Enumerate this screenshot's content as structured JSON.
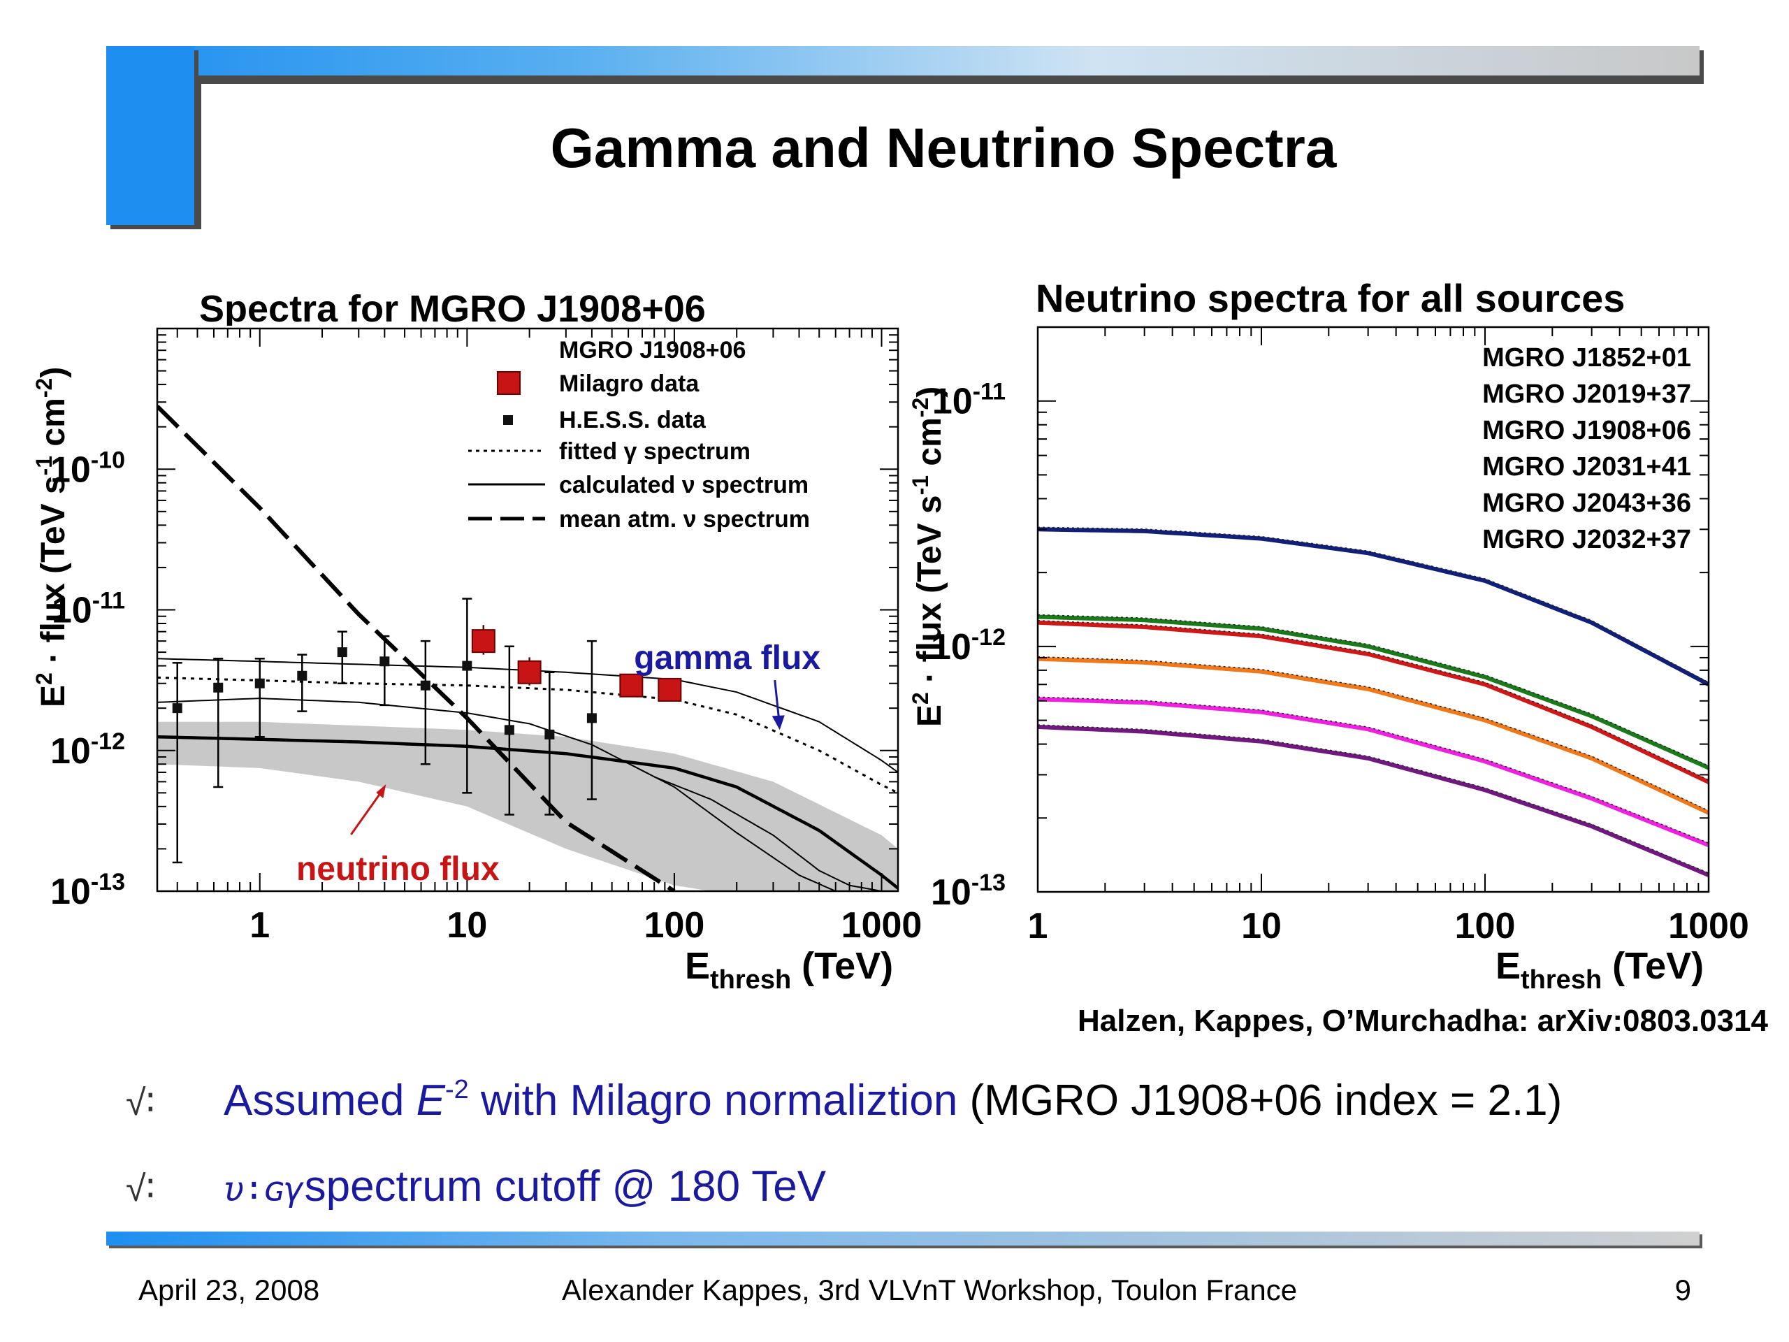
{
  "slide": {
    "title": "Gamma and Neutrino Spectra",
    "citation": "Halzen, Kappes, O’Murchadha: arXiv:0803.0314",
    "bullets": [
      {
        "mark": "√∶",
        "parts": [
          {
            "text": "Assumed ",
            "style": "blue"
          },
          {
            "text": "E",
            "style": "blue-italic"
          },
          {
            "text": "-2",
            "style": "blue-sup"
          },
          {
            "text": " with Milagro normaliztion",
            "style": "blue"
          },
          {
            "text": " (MGRO J1908+06 index = 2.1)",
            "style": "black"
          }
        ]
      },
      {
        "mark": "√∶",
        "parts": [
          {
            "text": "υ∶ɢγ",
            "style": "blue-glyph"
          },
          {
            "text": "spectrum cutoff @ 180 TeV",
            "style": "blue"
          }
        ]
      }
    ],
    "footer": {
      "date": "April 23, 2008",
      "center": "Alexander Kappes, 3rd VLVnT Workshop, Toulon France",
      "page": "9"
    }
  },
  "chart_data": [
    {
      "type": "line",
      "title": "Spectra for MGRO J1908+06",
      "xlabel": "E_thresh (TeV)",
      "ylabel": "E² · flux (TeV s⁻¹ cm⁻²)",
      "xscale": "log",
      "yscale": "log",
      "xlim": [
        0.32,
        1200
      ],
      "ylim": [
        1e-13,
        1e-09
      ],
      "xticks": [
        {
          "v": 1,
          "label": "1"
        },
        {
          "v": 10,
          "label": "10"
        },
        {
          "v": 100,
          "label": "100"
        },
        {
          "v": 1000,
          "label": "1000"
        }
      ],
      "yticks": [
        {
          "v": 1e-13,
          "label": "10",
          "exp": "-13"
        },
        {
          "v": 1e-12,
          "label": "10",
          "exp": "-12"
        },
        {
          "v": 1e-11,
          "label": "10",
          "exp": "-11"
        },
        {
          "v": 1e-10,
          "label": "10",
          "exp": "-10"
        }
      ],
      "legend": {
        "title": "MGRO J1908+06",
        "position": "top-right",
        "items": [
          {
            "label": "Milagro data",
            "symbol": "red-square"
          },
          {
            "label": "H.E.S.S. data",
            "symbol": "black-square"
          },
          {
            "label": "fitted γ spectrum",
            "symbol": "dotted"
          },
          {
            "label": "calculated ν spectrum",
            "symbol": "solid"
          },
          {
            "label": "mean atm. ν spectrum",
            "symbol": "dashed"
          }
        ]
      },
      "annotations": [
        {
          "text": "gamma flux",
          "color": "#1a1aa0",
          "x": 180,
          "y": 3.8e-12,
          "arrow_to": [
            320,
            1.4e-12
          ]
        },
        {
          "text": "neutrino flux",
          "color": "#c81414",
          "x": 1.5,
          "y": 1.2e-13,
          "arrow_to": [
            4,
            5.5e-13
          ]
        }
      ],
      "milagro": [
        {
          "x": 12,
          "y": 6e-12,
          "yerr": [
            4.8e-12,
            7.8e-12
          ]
        },
        {
          "x": 20,
          "y": 3.6e-12,
          "yerr": [
            2.9e-12,
            4.6e-12
          ]
        },
        {
          "x": 62,
          "y": 2.9e-12,
          "yerr": [
            2.5e-12,
            3.4e-12
          ]
        },
        {
          "x": 95,
          "y": 2.7e-12,
          "yerr": [
            2.3e-12,
            3.1e-12
          ]
        }
      ],
      "hess": [
        {
          "x": 0.4,
          "y": 2e-12,
          "lo": 1.6e-13,
          "hi": 4.2e-12
        },
        {
          "x": 0.63,
          "y": 2.8e-12,
          "lo": 5.5e-13,
          "hi": 4.5e-12
        },
        {
          "x": 1.0,
          "y": 3e-12,
          "lo": 1.25e-12,
          "hi": 4.5e-12
        },
        {
          "x": 1.6,
          "y": 3.4e-12,
          "lo": 1.9e-12,
          "hi": 4.8e-12
        },
        {
          "x": 2.5,
          "y": 5e-12,
          "lo": 3e-12,
          "hi": 7e-12
        },
        {
          "x": 4.0,
          "y": 4.3e-12,
          "lo": 2.1e-12,
          "hi": 6.5e-12
        },
        {
          "x": 6.3,
          "y": 2.9e-12,
          "lo": 8e-13,
          "hi": 6e-12
        },
        {
          "x": 10.0,
          "y": 4e-12,
          "lo": 5e-13,
          "hi": 1.2e-11
        },
        {
          "x": 16.0,
          "y": 1.4e-12,
          "lo": 3.5e-13,
          "hi": 5.5e-12
        },
        {
          "x": 25.0,
          "y": 1.3e-12,
          "lo": 3.5e-13,
          "hi": 3.6e-12
        },
        {
          "x": 40.0,
          "y": 1.7e-12,
          "lo": 4.5e-13,
          "hi": 6e-12
        }
      ],
      "curves": {
        "fitted_gamma": {
          "style": "dotted",
          "x": [
            0.32,
            1,
            3,
            10,
            30,
            100,
            200,
            500,
            1000,
            1200
          ],
          "y": [
            3.3e-12,
            3.15e-12,
            3e-12,
            2.9e-12,
            2.7e-12,
            2.3e-12,
            1.8e-12,
            1e-12,
            5.7e-13,
            5e-13
          ]
        },
        "upper_gamma": {
          "style": "solid-thin",
          "x": [
            0.32,
            1,
            3,
            10,
            30,
            100,
            200,
            500,
            1000,
            1200
          ],
          "y": [
            4.5e-12,
            4.3e-12,
            4.1e-12,
            3.9e-12,
            3.6e-12,
            3.2e-12,
            2.6e-12,
            1.6e-12,
            8.5e-13,
            7e-13
          ]
        },
        "calc_nu_thin": {
          "style": "solid-thin",
          "x": [
            0.32,
            1,
            3,
            10,
            20,
            40,
            100,
            200,
            400,
            600
          ],
          "y": [
            2.2e-12,
            2.35e-12,
            2.2e-12,
            1.85e-12,
            1.55e-12,
            1.1e-12,
            5.5e-13,
            2.6e-13,
            1.3e-13,
            1e-13
          ]
        },
        "calc_nu_thick": {
          "style": "solid-thick",
          "x": [
            0.32,
            1,
            3,
            10,
            30,
            100,
            200,
            500,
            1000,
            1200
          ],
          "y": [
            1.25e-12,
            1.2e-12,
            1.15e-12,
            1.07e-12,
            9.5e-13,
            7.5e-13,
            5.5e-13,
            2.7e-13,
            1.3e-13,
            1.05e-13
          ]
        },
        "thin_cutoff": {
          "style": "solid-thin",
          "x": [
            80,
            150,
            300,
            500,
            700,
            1000
          ],
          "y": [
            6.5e-13,
            4.5e-13,
            2.5e-13,
            1.4e-13,
            1.1e-13,
            1e-13
          ]
        },
        "atm_nu": {
          "style": "dashed",
          "x": [
            0.32,
            1,
            3,
            10,
            30,
            100
          ],
          "y": [
            2.8e-10,
            5.3e-11,
            9.3e-12,
            1.7e-12,
            3.1e-13,
            1e-13
          ]
        },
        "band_upper": {
          "x": [
            0.32,
            1,
            3,
            10,
            30,
            100,
            300,
            1000,
            1200
          ],
          "y": [
            1.6e-12,
            1.6e-12,
            1.5e-12,
            1.4e-12,
            1.25e-12,
            9.5e-13,
            6e-13,
            2.5e-13,
            2e-13
          ]
        },
        "band_lower": {
          "x": [
            0.32,
            1,
            3,
            10,
            30,
            100,
            150
          ],
          "y": [
            8e-13,
            7.5e-13,
            6e-13,
            4e-13,
            2e-13,
            1.1e-13,
            1e-13
          ]
        }
      }
    },
    {
      "type": "line",
      "title": "Neutrino spectra for all sources",
      "xlabel": "E_thresh (TeV)",
      "ylabel": "E² · flux (TeV s⁻¹ cm⁻²)",
      "xscale": "log",
      "yscale": "log",
      "xlim": [
        1,
        1000
      ],
      "ylim": [
        1e-13,
        2e-11
      ],
      "xticks": [
        {
          "v": 1,
          "label": "1"
        },
        {
          "v": 10,
          "label": "10"
        },
        {
          "v": 100,
          "label": "100"
        },
        {
          "v": 1000,
          "label": "1000"
        }
      ],
      "yticks": [
        {
          "v": 1e-13,
          "label": "10",
          "exp": "-13"
        },
        {
          "v": 1e-12,
          "label": "10",
          "exp": "-12"
        },
        {
          "v": 1e-11,
          "label": "10",
          "exp": "-11"
        }
      ],
      "legend": {
        "position": "top-right",
        "items": [
          "MGRO J1852+01",
          "MGRO J2019+37",
          "MGRO J1908+06",
          "MGRO J2031+41",
          "MGRO J2043+36",
          "MGRO J2032+37"
        ]
      },
      "series": [
        {
          "color": "#10207a",
          "x": [
            1,
            3,
            10,
            30,
            100,
            300,
            1000
          ],
          "y": [
            3e-12,
            2.95e-12,
            2.75e-12,
            2.4e-12,
            1.85e-12,
            1.25e-12,
            7e-13
          ]
        },
        {
          "color": "#1a7a1a",
          "x": [
            1,
            3,
            10,
            30,
            100,
            300,
            1000
          ],
          "y": [
            1.32e-12,
            1.28e-12,
            1.18e-12,
            1e-12,
            7.5e-13,
            5.2e-13,
            3.2e-13
          ]
        },
        {
          "color": "#d01818",
          "x": [
            1,
            3,
            10,
            30,
            100,
            300,
            1000
          ],
          "y": [
            1.25e-12,
            1.2e-12,
            1.1e-12,
            9.3e-13,
            7e-13,
            4.7e-13,
            2.8e-13
          ]
        },
        {
          "color": "#f07818",
          "x": [
            1,
            3,
            10,
            30,
            100,
            300,
            1000
          ],
          "y": [
            8.9e-13,
            8.6e-13,
            7.9e-13,
            6.7e-13,
            5e-13,
            3.5e-13,
            2.1e-13
          ]
        },
        {
          "color": "#f020e0",
          "x": [
            1,
            3,
            10,
            30,
            100,
            300,
            1000
          ],
          "y": [
            6.1e-13,
            5.9e-13,
            5.4e-13,
            4.6e-13,
            3.4e-13,
            2.4e-13,
            1.55e-13
          ]
        },
        {
          "color": "#701880",
          "x": [
            1,
            3,
            10,
            30,
            100,
            300,
            1000
          ],
          "y": [
            4.7e-13,
            4.5e-13,
            4.1e-13,
            3.5e-13,
            2.6e-13,
            1.85e-13,
            1.17e-13
          ]
        }
      ]
    }
  ]
}
